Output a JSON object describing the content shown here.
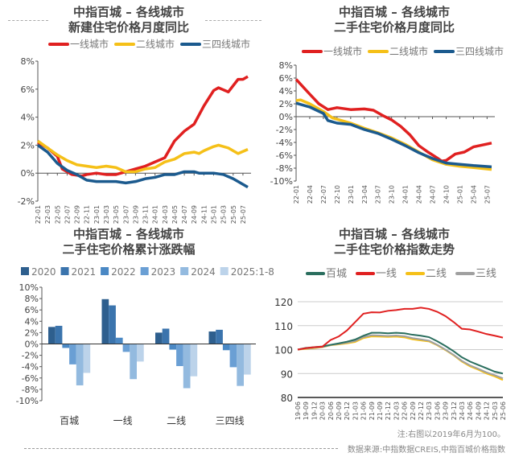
{
  "footer": {
    "note": "注:右图以2019年6月为100。",
    "source": "数据来源:中指数据CREIS,中指百城价格指数"
  },
  "chart_data": [
    {
      "type": "line",
      "title": [
        "中指百城 – 各线城市",
        "新建住宅价格月度同比"
      ],
      "x_start": "22-01",
      "x_end": "25-08",
      "xticks": [
        "22-01",
        "22-03",
        "22-05",
        "22-07",
        "22-09",
        "22-11",
        "23-01",
        "23-03",
        "23-05",
        "23-07",
        "23-09",
        "23-11",
        "24-01",
        "24-03",
        "24-05",
        "24-07",
        "24-09",
        "24-11",
        "25-01",
        "25-03",
        "25-05",
        "25-07"
      ],
      "ylim": [
        -2,
        8
      ],
      "yticks": [
        -2,
        0,
        2,
        4,
        6,
        8
      ],
      "yunit": "%",
      "legend": "top",
      "series": [
        {
          "name": "一线城市",
          "color": "#e02020",
          "points": [
            [
              "22-01",
              2.2
            ],
            [
              "22-03",
              1.8
            ],
            [
              "22-05",
              1.2
            ],
            [
              "22-06",
              0.3
            ],
            [
              "22-08",
              -0.1
            ],
            [
              "22-10",
              -0.2
            ],
            [
              "22-11",
              -0.1
            ],
            [
              "23-01",
              0
            ],
            [
              "23-03",
              -0.1
            ],
            [
              "23-05",
              -0.1
            ],
            [
              "23-07",
              0.1
            ],
            [
              "23-09",
              0.3
            ],
            [
              "23-11",
              0.5
            ],
            [
              "24-01",
              0.8
            ],
            [
              "24-03",
              1.1
            ],
            [
              "24-05",
              2.3
            ],
            [
              "24-07",
              3.0
            ],
            [
              "24-09",
              3.5
            ],
            [
              "24-11",
              4.8
            ],
            [
              "25-01",
              5.9
            ],
            [
              "25-02",
              6.1
            ],
            [
              "25-04",
              5.8
            ],
            [
              "25-06",
              6.7
            ],
            [
              "25-07",
              6.7
            ],
            [
              "25-08",
              6.9
            ]
          ]
        },
        {
          "name": "二线城市",
          "color": "#f5c018",
          "points": [
            [
              "22-01",
              2.3
            ],
            [
              "22-03",
              1.8
            ],
            [
              "22-05",
              1.3
            ],
            [
              "22-07",
              0.9
            ],
            [
              "22-09",
              0.6
            ],
            [
              "22-11",
              0.5
            ],
            [
              "23-01",
              0.4
            ],
            [
              "23-03",
              0.5
            ],
            [
              "23-05",
              0.4
            ],
            [
              "23-07",
              0.1
            ],
            [
              "23-09",
              0.1
            ],
            [
              "23-11",
              0.3
            ],
            [
              "24-01",
              0.4
            ],
            [
              "24-03",
              0.8
            ],
            [
              "24-05",
              1.0
            ],
            [
              "24-07",
              1.4
            ],
            [
              "24-09",
              1.5
            ],
            [
              "24-10",
              1.4
            ],
            [
              "24-11",
              1.6
            ],
            [
              "25-01",
              1.9
            ],
            [
              "25-02",
              2.0
            ],
            [
              "25-04",
              1.8
            ],
            [
              "25-06",
              1.4
            ],
            [
              "25-08",
              1.7
            ]
          ]
        },
        {
          "name": "三四线城市",
          "color": "#1b5a8e",
          "points": [
            [
              "22-01",
              2.0
            ],
            [
              "22-03",
              1.5
            ],
            [
              "22-05",
              0.7
            ],
            [
              "22-07",
              0.2
            ],
            [
              "22-09",
              -0.1
            ],
            [
              "22-11",
              -0.5
            ],
            [
              "23-01",
              -0.6
            ],
            [
              "23-05",
              -0.6
            ],
            [
              "23-07",
              -0.7
            ],
            [
              "23-09",
              -0.6
            ],
            [
              "23-11",
              -0.4
            ],
            [
              "24-01",
              -0.3
            ],
            [
              "24-03",
              -0.1
            ],
            [
              "24-05",
              -0.1
            ],
            [
              "24-07",
              0.1
            ],
            [
              "24-09",
              0.1
            ],
            [
              "24-10",
              0
            ],
            [
              "25-01",
              0
            ],
            [
              "25-03",
              -0.1
            ],
            [
              "25-05",
              -0.4
            ],
            [
              "25-08",
              -1.0
            ]
          ]
        }
      ]
    },
    {
      "type": "line",
      "title": [
        "中指百城 – 各线城市",
        "二手住宅价格月度同比"
      ],
      "x_start": "22-01",
      "x_end": "25-08",
      "xticks": [
        "22-01",
        "22-04",
        "22-07",
        "22-10",
        "23-01",
        "23-04",
        "23-07",
        "23-10",
        "24-01",
        "24-04",
        "24-07",
        "24-10",
        "25-01",
        "25-04",
        "25-07"
      ],
      "ylim": [
        -10,
        8
      ],
      "yticks": [
        -10,
        -8,
        -6,
        -4,
        -2,
        0,
        2,
        4,
        6,
        8
      ],
      "yunit": "%",
      "legend": "top",
      "series": [
        {
          "name": "一线城市",
          "color": "#e02020",
          "points": [
            [
              "22-01",
              5.8
            ],
            [
              "22-04",
              3.5
            ],
            [
              "22-06",
              2.0
            ],
            [
              "22-08",
              1.1
            ],
            [
              "22-10",
              1.4
            ],
            [
              "23-01",
              1.1
            ],
            [
              "23-04",
              1.2
            ],
            [
              "23-06",
              1.0
            ],
            [
              "23-08",
              0.2
            ],
            [
              "23-10",
              -0.5
            ],
            [
              "23-12",
              -1.5
            ],
            [
              "24-02",
              -2.8
            ],
            [
              "24-04",
              -4.5
            ],
            [
              "24-06",
              -5.5
            ],
            [
              "24-08",
              -6.4
            ],
            [
              "24-09",
              -6.9
            ],
            [
              "24-10",
              -6.8
            ],
            [
              "24-12",
              -5.8
            ],
            [
              "25-02",
              -5.5
            ],
            [
              "25-04",
              -4.7
            ],
            [
              "25-06",
              -4.4
            ],
            [
              "25-08",
              -4.1
            ]
          ]
        },
        {
          "name": "二线城市",
          "color": "#f5c018",
          "points": [
            [
              "22-01",
              2.5
            ],
            [
              "22-02",
              2.6
            ],
            [
              "22-04",
              2.0
            ],
            [
              "22-07",
              0.8
            ],
            [
              "22-09",
              -0.2
            ],
            [
              "22-11",
              -0.6
            ],
            [
              "23-01",
              -1.0
            ],
            [
              "23-04",
              -1.8
            ],
            [
              "23-07",
              -2.5
            ],
            [
              "23-10",
              -3.3
            ],
            [
              "24-01",
              -4.3
            ],
            [
              "24-04",
              -5.5
            ],
            [
              "24-07",
              -6.7
            ],
            [
              "24-10",
              -7.4
            ],
            [
              "25-01",
              -7.7
            ],
            [
              "25-04",
              -7.9
            ],
            [
              "25-08",
              -8.2
            ]
          ]
        },
        {
          "name": "三四线城市",
          "color": "#1b5a8e",
          "points": [
            [
              "22-01",
              2.1
            ],
            [
              "22-04",
              1.5
            ],
            [
              "22-07",
              0.5
            ],
            [
              "22-08",
              -0.6
            ],
            [
              "22-10",
              -1.0
            ],
            [
              "23-01",
              -1.2
            ],
            [
              "23-04",
              -2.0
            ],
            [
              "23-07",
              -2.6
            ],
            [
              "23-10",
              -3.5
            ],
            [
              "24-01",
              -4.5
            ],
            [
              "24-04",
              -5.6
            ],
            [
              "24-07",
              -6.5
            ],
            [
              "24-10",
              -7.2
            ],
            [
              "25-01",
              -7.4
            ],
            [
              "25-04",
              -7.6
            ],
            [
              "25-08",
              -7.8
            ]
          ]
        }
      ]
    },
    {
      "type": "bar",
      "title": [
        "中指百城 – 各线城市",
        "二手住宅价格累计涨跌幅"
      ],
      "categories": [
        "百城",
        "一线",
        "二线",
        "三四线"
      ],
      "ylim": [
        -10,
        10
      ],
      "yticks": [
        -10,
        -8,
        -6,
        -4,
        -2,
        0,
        2,
        4,
        6,
        8,
        10
      ],
      "yunit": "%",
      "legend": "top",
      "series": [
        {
          "name": "2020",
          "color": "#2e5f8e",
          "values": [
            3.0,
            7.9,
            2.0,
            2.2
          ]
        },
        {
          "name": "2021",
          "color": "#3b74ad",
          "values": [
            3.2,
            6.8,
            2.7,
            2.5
          ]
        },
        {
          "name": "2022",
          "color": "#4a88c4",
          "values": [
            -0.7,
            1.1,
            -1.0,
            -1.1
          ]
        },
        {
          "name": "2023",
          "color": "#6a9fd4",
          "values": [
            -3.6,
            -1.4,
            -3.9,
            -4.1
          ]
        },
        {
          "name": "2024",
          "color": "#93badf",
          "values": [
            -7.3,
            -6.2,
            -7.8,
            -7.4
          ]
        },
        {
          "name": "2025:1-8",
          "color": "#bcd3ea",
          "values": [
            -5.1,
            -3.1,
            -5.7,
            -5.4
          ]
        }
      ]
    },
    {
      "type": "line",
      "title": [
        "中指百城 – 各线城市",
        "二手住宅价格指数走势"
      ],
      "categories": [
        "19-06",
        "19-09",
        "19-12",
        "20-03",
        "20-06",
        "20-09",
        "20-12",
        "21-03",
        "21-06",
        "21-09",
        "21-09",
        "21-12",
        "22-03",
        "22-06",
        "22-09",
        "22-12",
        "23-03",
        "23-06",
        "23-09",
        "23-12",
        "24-03",
        "24-06",
        "24-09",
        "24-12",
        "25-03",
        "25-06"
      ],
      "ylim": [
        80,
        120
      ],
      "yticks": [
        80,
        90,
        100,
        110,
        120
      ],
      "grid": true,
      "legend": "top",
      "series": [
        {
          "name": "百城",
          "color": "#2a6e5e",
          "values": [
            100,
            100.7,
            101,
            101.3,
            102,
            102.6,
            103.3,
            104.2,
            105.8,
            107.0,
            107.0,
            106.8,
            107.0,
            106.8,
            106.2,
            105.8,
            105.2,
            103.5,
            101.5,
            99.3,
            96.8,
            95.0,
            93.6,
            92.2,
            90.8,
            90.0
          ]
        },
        {
          "name": "一线",
          "color": "#e02020",
          "values": [
            100,
            100.6,
            101,
            101.2,
            104,
            105.5,
            108,
            111.5,
            115,
            115.6,
            115.5,
            116.2,
            116.5,
            117,
            117,
            117.5,
            117,
            115.8,
            114,
            111.5,
            108.7,
            108.4,
            107.5,
            106.5,
            105.8,
            105.0
          ]
        },
        {
          "name": "二线",
          "color": "#f5c018",
          "values": [
            100,
            100.3,
            100.6,
            101,
            101.8,
            102.2,
            102.6,
            103.2,
            104.8,
            105.5,
            105.4,
            105.3,
            105.4,
            105.1,
            104.3,
            103.8,
            103.4,
            101.8,
            99.8,
            97.6,
            95.0,
            93.0,
            91.6,
            90.0,
            88.8,
            87.3
          ]
        },
        {
          "name": "三线",
          "color": "#a0a0a0",
          "values": [
            100,
            100.5,
            100.8,
            101.1,
            101.9,
            102.4,
            102.9,
            103.6,
            105.2,
            106.0,
            105.9,
            105.7,
            105.9,
            105.6,
            104.8,
            104.3,
            103.7,
            102.0,
            100.0,
            97.8,
            95.3,
            93.4,
            92.0,
            90.5,
            89.3,
            88.0
          ]
        }
      ]
    }
  ]
}
